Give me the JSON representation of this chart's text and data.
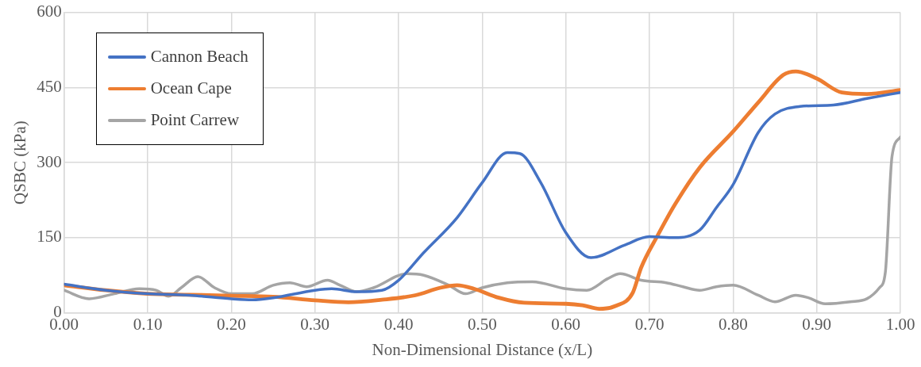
{
  "chart_data": {
    "type": "line",
    "xlabel": "Non-Dimensional Distance (x/L)",
    "ylabel": "QSBC (kPa)",
    "xlim": [
      0,
      1
    ],
    "xticks": [
      {
        "value": 0,
        "label": "0.00"
      },
      {
        "value": 0.1,
        "label": "0.10"
      },
      {
        "value": 0.2,
        "label": "0.20"
      },
      {
        "value": 0.3,
        "label": "0.30"
      },
      {
        "value": 0.4,
        "label": "0.40"
      },
      {
        "value": 0.5,
        "label": "0.50"
      },
      {
        "value": 0.6,
        "label": "0.60"
      },
      {
        "value": 0.7,
        "label": "0.70"
      },
      {
        "value": 0.8,
        "label": "0.80"
      },
      {
        "value": 0.9,
        "label": "0.90"
      },
      {
        "value": 1,
        "label": "1.00"
      }
    ],
    "ylim": [
      0,
      600
    ],
    "yticks": [
      0,
      150,
      300,
      450,
      600
    ],
    "grid": true,
    "legend": "top left",
    "marker": "none",
    "line_style": "solid",
    "series": [
      {
        "name": "Cannon Beach",
        "color": "#4472c4",
        "x": [
          0,
          0.05,
          0.1,
          0.15,
          0.2,
          0.225,
          0.25,
          0.3,
          0.32,
          0.35,
          0.38,
          0.4,
          0.43,
          0.47,
          0.5,
          0.53,
          0.545,
          0.57,
          0.6,
          0.63,
          0.67,
          0.7,
          0.73,
          0.76,
          0.78,
          0.8,
          0.83,
          0.85,
          0.88,
          0.92,
          0.96,
          1
        ],
        "values": [
          57,
          45,
          38,
          35,
          28,
          26,
          30,
          45,
          48,
          42,
          45,
          65,
          120,
          190,
          260,
          320,
          318,
          260,
          160,
          110,
          135,
          152,
          150,
          165,
          210,
          256,
          360,
          397,
          412,
          415,
          428,
          440
        ]
      },
      {
        "name": "Ocean Cape",
        "color": "#ed7d31",
        "x": [
          0,
          0.05,
          0.1,
          0.15,
          0.2,
          0.25,
          0.3,
          0.34,
          0.38,
          0.42,
          0.45,
          0.47,
          0.49,
          0.52,
          0.55,
          0.6,
          0.62,
          0.64,
          0.66,
          0.68,
          0.69,
          0.71,
          0.73,
          0.76,
          0.8,
          0.83,
          0.86,
          0.875,
          0.9,
          0.93,
          0.96,
          1
        ],
        "values": [
          55,
          45,
          38,
          36,
          34,
          32,
          25,
          21,
          26,
          35,
          50,
          55,
          48,
          30,
          20,
          18,
          15,
          8,
          14,
          40,
          90,
          155,
          215,
          290,
          362,
          420,
          475,
          482,
          468,
          440,
          437,
          445
        ]
      },
      {
        "name": "Point Carrew",
        "color": "#a5a5a5",
        "x": [
          0,
          0.03,
          0.06,
          0.09,
          0.11,
          0.125,
          0.14,
          0.16,
          0.18,
          0.2,
          0.225,
          0.25,
          0.27,
          0.29,
          0.315,
          0.33,
          0.35,
          0.37,
          0.41,
          0.43,
          0.46,
          0.48,
          0.5,
          0.53,
          0.56,
          0.6,
          0.625,
          0.65,
          0.665,
          0.69,
          0.72,
          0.74,
          0.76,
          0.78,
          0.8,
          0.83,
          0.85,
          0.875,
          0.89,
          0.91,
          0.94,
          0.96,
          0.975,
          0.982,
          0.99,
          1
        ],
        "values": [
          45,
          28,
          38,
          48,
          45,
          33,
          50,
          72,
          50,
          38,
          38,
          55,
          60,
          52,
          65,
          55,
          42,
          50,
          78,
          75,
          55,
          38,
          50,
          60,
          62,
          48,
          45,
          68,
          78,
          65,
          60,
          52,
          45,
          52,
          55,
          35,
          22,
          35,
          30,
          18,
          22,
          28,
          50,
          80,
          312,
          351
        ]
      }
    ]
  }
}
